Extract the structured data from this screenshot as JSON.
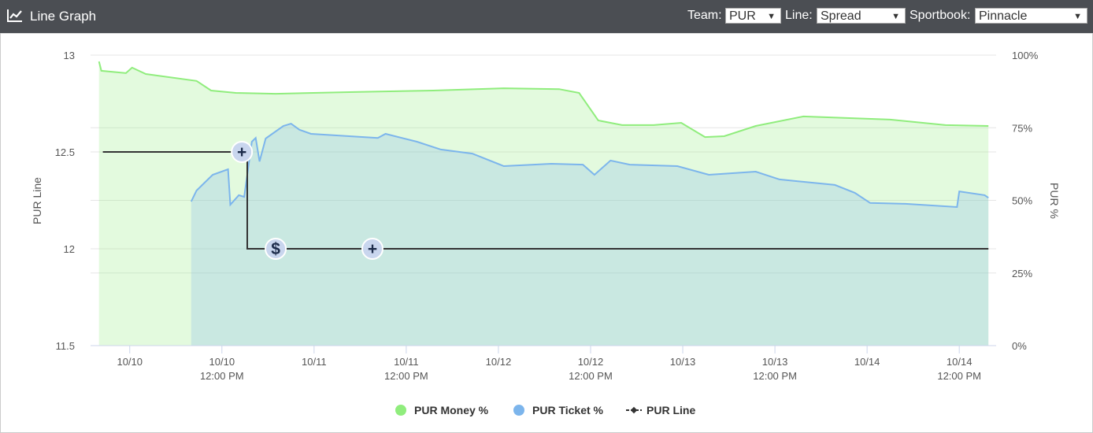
{
  "header": {
    "title": "Line Graph",
    "controls": [
      {
        "label": "Team:",
        "value": "PUR"
      },
      {
        "label": "Line:",
        "value": "Spread"
      },
      {
        "label": "Sportbook:",
        "value": "Pinnacle"
      }
    ]
  },
  "chart_data": {
    "type": "line",
    "y_label": "PUR Line",
    "y2_label": "PUR %",
    "xlim": [
      -5.1,
      112.8
    ],
    "xticks": [
      {
        "value": 0,
        "label": [
          "10/10"
        ]
      },
      {
        "value": 12,
        "label": [
          "10/10",
          "12:00 PM"
        ]
      },
      {
        "value": 24,
        "label": [
          "10/11"
        ]
      },
      {
        "value": 36,
        "label": [
          "10/11",
          "12:00 PM"
        ]
      },
      {
        "value": 48,
        "label": [
          "10/12"
        ]
      },
      {
        "value": 60,
        "label": [
          "10/12",
          "12:00 PM"
        ]
      },
      {
        "value": 72,
        "label": [
          "10/13"
        ]
      },
      {
        "value": 84,
        "label": [
          "10/13",
          "12:00 PM"
        ]
      },
      {
        "value": 96,
        "label": [
          "10/14"
        ]
      },
      {
        "value": 108,
        "label": [
          "10/14",
          "12:00 PM"
        ]
      }
    ],
    "ylim": [
      11.5,
      13
    ],
    "yticks": [
      11.5,
      12,
      12.5,
      13
    ],
    "y2lim": [
      0,
      100
    ],
    "y2ticks": [
      {
        "value": 0,
        "label": "0%"
      },
      {
        "value": 25,
        "label": "25%"
      },
      {
        "value": 50,
        "label": "50%"
      },
      {
        "value": 75,
        "label": "75%"
      },
      {
        "value": 100,
        "label": "100%"
      }
    ],
    "grid": true,
    "series": [
      {
        "name": "PUR Money %",
        "color": "#90ed7d",
        "axis": "y2",
        "area": true,
        "x": [
          -4.0,
          -3.7,
          -0.5,
          0.3,
          2.1,
          8.7,
          10.6,
          13.8,
          19.0,
          29.2,
          39.5,
          48.7,
          55.9,
          58.5,
          61.0,
          64.1,
          68.2,
          71.8,
          74.9,
          77.4,
          81.5,
          87.7,
          99.0,
          106.2,
          111.8
        ],
        "values": [
          97.8,
          94.6,
          93.8,
          95.7,
          93.5,
          91.1,
          87.8,
          87.0,
          86.7,
          87.3,
          87.8,
          88.6,
          88.3,
          87.0,
          77.5,
          75.9,
          75.9,
          76.7,
          71.8,
          72.1,
          75.6,
          78.9,
          77.8,
          75.9,
          75.6
        ]
      },
      {
        "name": "PUR Ticket %",
        "color": "#7cb5ec",
        "axis": "y2",
        "area": true,
        "x": [
          8.0,
          8.7,
          10.8,
          12.8,
          13.1,
          14.2,
          14.9,
          15.9,
          16.4,
          16.9,
          17.7,
          20.0,
          21.0,
          22.1,
          23.6,
          32.3,
          33.3,
          37.4,
          40.5,
          44.6,
          48.7,
          54.9,
          59.0,
          60.5,
          62.6,
          65.1,
          71.3,
          75.4,
          81.5,
          84.6,
          91.8,
          94.4,
          96.4,
          101.0,
          107.7,
          108.0,
          111.3,
          111.8
        ],
        "values": [
          49.6,
          53.4,
          58.8,
          60.7,
          48.5,
          51.8,
          51.2,
          70.2,
          71.5,
          63.4,
          71.3,
          75.6,
          76.4,
          74.3,
          72.9,
          71.5,
          72.9,
          70.2,
          67.5,
          66.1,
          61.8,
          62.6,
          62.3,
          58.8,
          63.7,
          62.3,
          61.8,
          58.8,
          59.9,
          57.2,
          55.3,
          52.6,
          49.1,
          48.8,
          47.7,
          53.1,
          51.8,
          50.9
        ]
      },
      {
        "name": "PUR Line",
        "color": "#333333",
        "axis": "y",
        "area": false,
        "x": [
          -3.5,
          15.3,
          15.3,
          111.8
        ],
        "values": [
          12.5,
          12.5,
          12,
          12
        ]
      }
    ],
    "events": [
      {
        "x": 14.6,
        "y": 12.5,
        "symbol": "+"
      },
      {
        "x": 19.0,
        "y": 12,
        "symbol": "$"
      },
      {
        "x": 31.6,
        "y": 12,
        "symbol": "+"
      }
    ]
  }
}
